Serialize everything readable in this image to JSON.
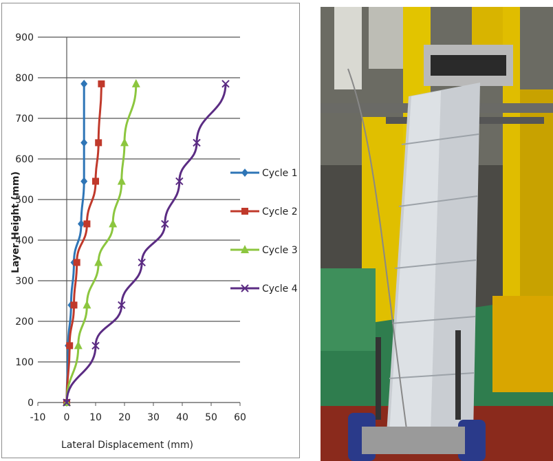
{
  "chart_data": {
    "type": "line",
    "xlabel": "Lateral Displacement (mm)",
    "ylabel": "Layer Height (mm)",
    "xlim": [
      -10,
      60
    ],
    "ylim": [
      0,
      900
    ],
    "xticks": [
      -10,
      0,
      10,
      20,
      30,
      40,
      50,
      60
    ],
    "yticks": [
      0,
      100,
      200,
      300,
      400,
      500,
      600,
      700,
      800,
      900
    ],
    "grid": "horizontal",
    "legend_position": "right",
    "series": [
      {
        "name": "Cycle 1",
        "color": "#2e75b6",
        "marker": "diamond",
        "x": [
          0,
          0.5,
          1.5,
          2.5,
          5,
          6,
          6,
          6
        ],
        "y": [
          0,
          140,
          240,
          345,
          440,
          545,
          640,
          785
        ]
      },
      {
        "name": "Cycle 2",
        "color": "#c0392b",
        "marker": "square",
        "x": [
          0,
          1,
          2.5,
          3.5,
          7,
          10,
          11,
          12
        ],
        "y": [
          0,
          140,
          240,
          345,
          440,
          545,
          640,
          785
        ]
      },
      {
        "name": "Cycle 3",
        "color": "#8cc63f",
        "marker": "triangle",
        "x": [
          0,
          4,
          7,
          11,
          16,
          19,
          20,
          24
        ],
        "y": [
          0,
          140,
          240,
          345,
          440,
          545,
          640,
          785
        ]
      },
      {
        "name": "Cycle 4",
        "color": "#5b2c83",
        "marker": "x",
        "x": [
          0,
          10,
          19,
          26,
          34,
          39,
          45,
          55
        ],
        "y": [
          0,
          140,
          240,
          345,
          440,
          545,
          640,
          785
        ]
      }
    ]
  },
  "photo": {
    "description_icon": "test-specimen-photo"
  }
}
